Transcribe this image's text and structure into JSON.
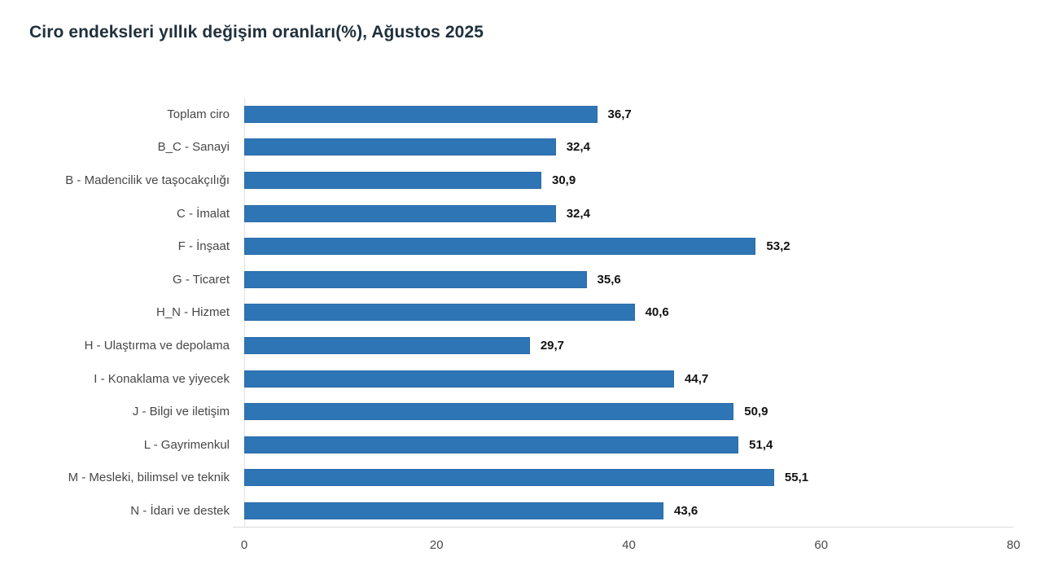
{
  "title": "Ciro endeksleri yıllık değişim oranları(%), Ağustos 2025",
  "colors": {
    "bar": "#2e75b6",
    "bar_border": "#2a6ba7",
    "axis_line": "#dcdcdc",
    "title_text": "#20303c",
    "category_text": "#474747",
    "value_text": "#111111"
  },
  "chart_data": {
    "type": "bar",
    "orientation": "horizontal",
    "title": "Ciro endeksleri yıllık değişim oranları(%), Ağustos 2025",
    "categories": [
      "Toplam ciro",
      "B_C - Sanayi",
      "B - Madencilik ve taşocakçılığı",
      "C - İmalat",
      "F - İnşaat",
      "G - Ticaret",
      "H_N - Hizmet",
      "H - Ulaştırma ve depolama",
      "I - Konaklama ve yiyecek",
      "J - Bilgi ve iletişim",
      "L - Gayrimenkul",
      "M - Mesleki, bilimsel ve teknik",
      "N - İdari ve destek"
    ],
    "values": [
      36.7,
      32.4,
      30.9,
      32.4,
      53.2,
      35.6,
      40.6,
      29.7,
      44.7,
      50.9,
      51.4,
      55.1,
      43.6
    ],
    "value_labels": [
      "36,7",
      "32,4",
      "30,9",
      "32,4",
      "53,2",
      "35,6",
      "40,6",
      "29,7",
      "44,7",
      "50,9",
      "51,4",
      "55,1",
      "43,6"
    ],
    "xlabel": "",
    "ylabel": "",
    "xlim": [
      0,
      80
    ],
    "xticks": [
      0,
      20,
      40,
      60,
      80
    ],
    "xtick_labels": [
      "0",
      "20",
      "40",
      "60",
      "80"
    ],
    "grid": false,
    "legend": false,
    "bar_color": "#2e75b6"
  }
}
